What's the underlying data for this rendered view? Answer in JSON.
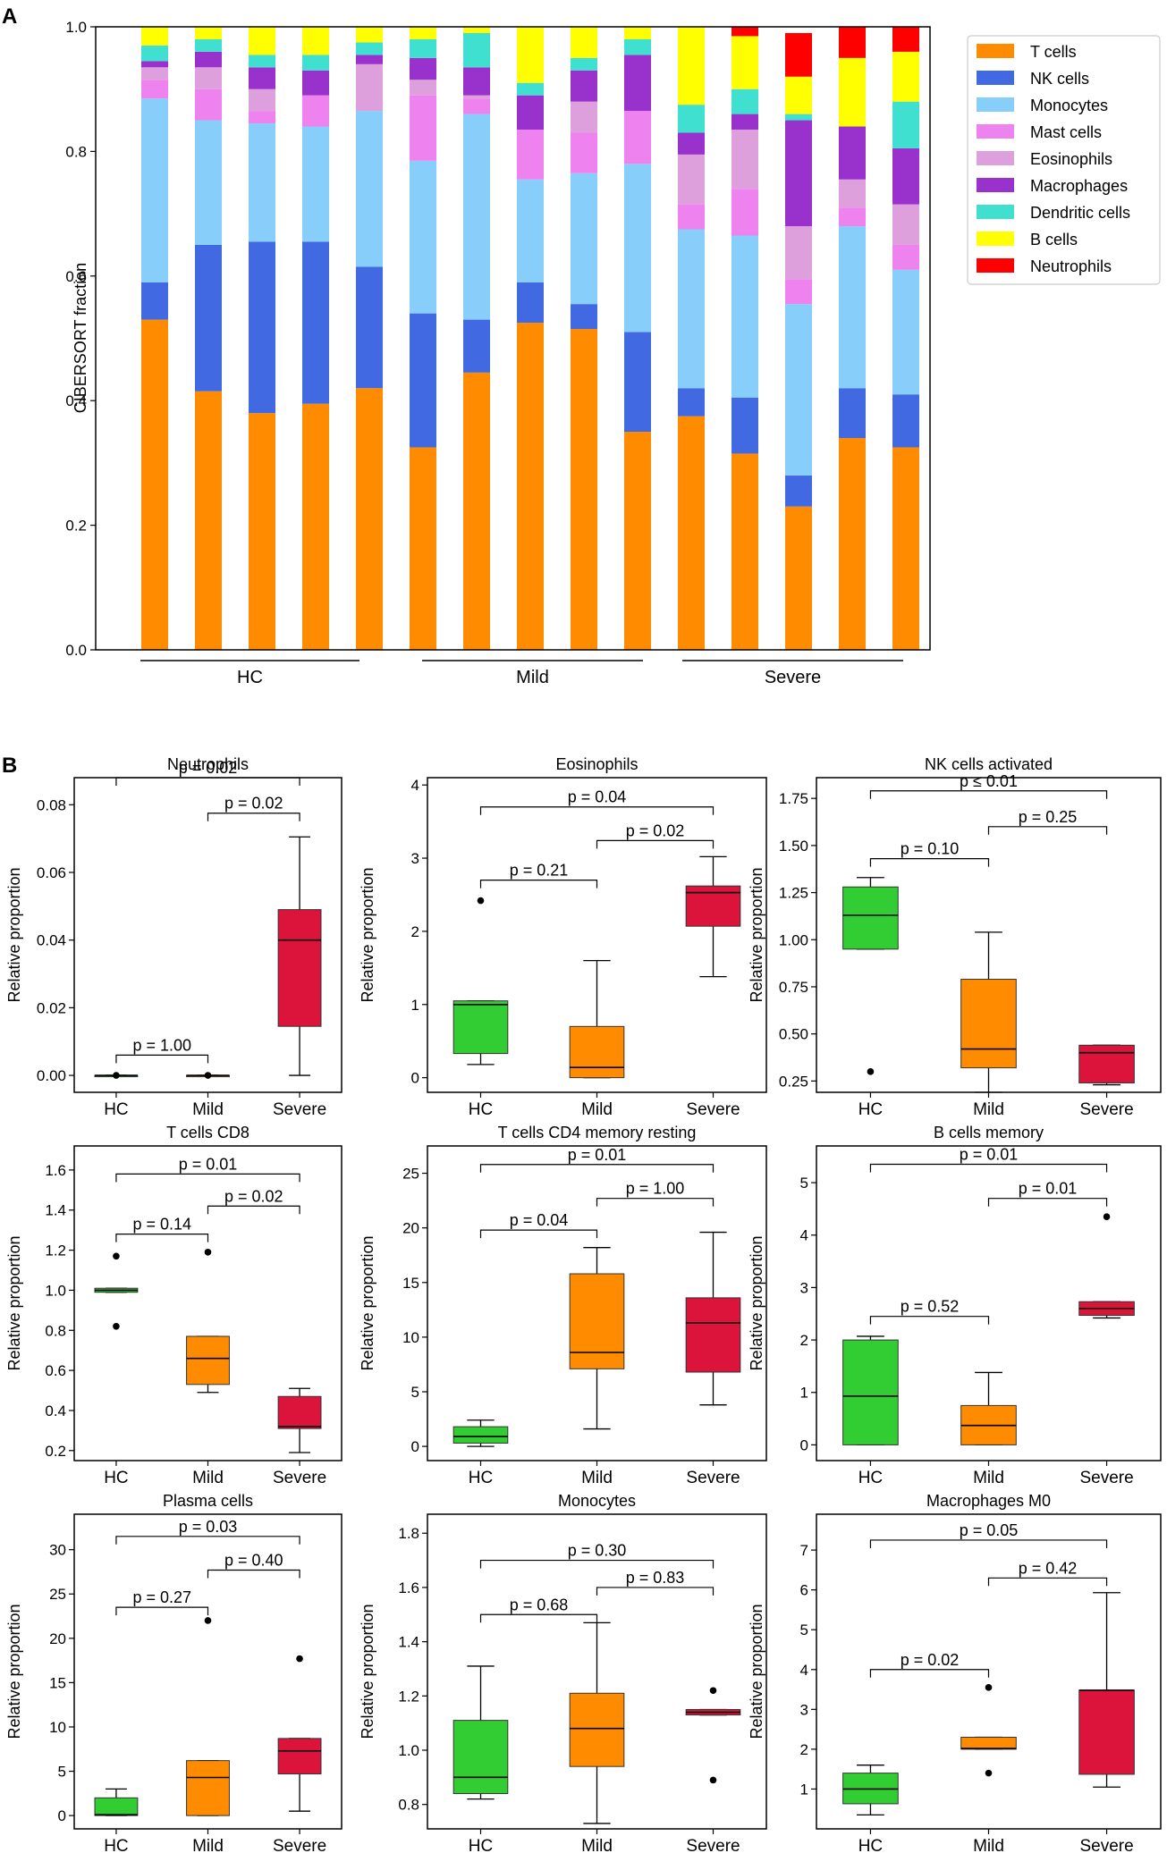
{
  "panel_labels": {
    "a": "A",
    "b": "B"
  },
  "colors": {
    "T cells": "#FF8C00",
    "NK cells": "#4169E1",
    "Monocytes": "#87CEFA",
    "Mast cells": "#EE82EE",
    "Eosinophils": "#DDA0DD",
    "Macrophages": "#9932CC",
    "Dendritic cells": "#40E0D0",
    "B cells": "#FFFF00",
    "Neutrophils": "#FF0000",
    "box_HC": "#32CD32",
    "box_Mild": "#FF8C00",
    "box_Severe": "#DC143C"
  },
  "chart_data": [
    {
      "type": "stacked-bar",
      "title": "",
      "ylabel": "CIBERSORT fraction",
      "ylim": [
        0,
        1.0
      ],
      "yticks": [
        "0.0",
        "0.2",
        "0.4",
        "0.6",
        "0.8",
        "1.0"
      ],
      "legend_position": "top-right",
      "cell_types": [
        "T cells",
        "NK cells",
        "Monocytes",
        "Mast cells",
        "Eosinophils",
        "Macrophages",
        "Dendritic cells",
        "B cells",
        "Neutrophils"
      ],
      "groups": [
        {
          "label": "HC",
          "bars": [
            0,
            1,
            2,
            3,
            4
          ]
        },
        {
          "label": "Mild",
          "bars": [
            5,
            6,
            7,
            8,
            9
          ]
        },
        {
          "label": "Severe",
          "bars": [
            10,
            11,
            12,
            13,
            14
          ]
        }
      ],
      "samples": [
        [
          0.53,
          0.06,
          0.295,
          0.03,
          0.02,
          0.01,
          0.025,
          0.03,
          0.0
        ],
        [
          0.415,
          0.235,
          0.2,
          0.05,
          0.035,
          0.025,
          0.02,
          0.02,
          0.0
        ],
        [
          0.38,
          0.275,
          0.19,
          0.02,
          0.035,
          0.035,
          0.02,
          0.045,
          0.0
        ],
        [
          0.395,
          0.26,
          0.185,
          0.05,
          0.0,
          0.04,
          0.025,
          0.045,
          0.0
        ],
        [
          0.42,
          0.195,
          0.25,
          0.0,
          0.075,
          0.015,
          0.02,
          0.025,
          0.0
        ],
        [
          0.325,
          0.215,
          0.245,
          0.105,
          0.025,
          0.035,
          0.03,
          0.02,
          0.0
        ],
        [
          0.445,
          0.085,
          0.33,
          0.025,
          0.005,
          0.045,
          0.055,
          0.01,
          0.0
        ],
        [
          0.525,
          0.065,
          0.165,
          0.08,
          0.0,
          0.055,
          0.02,
          0.09,
          0.0
        ],
        [
          0.515,
          0.04,
          0.21,
          0.065,
          0.05,
          0.05,
          0.02,
          0.05,
          0.0
        ],
        [
          0.35,
          0.16,
          0.27,
          0.085,
          0.0,
          0.09,
          0.025,
          0.02,
          0.0
        ],
        [
          0.375,
          0.045,
          0.255,
          0.04,
          0.08,
          0.035,
          0.045,
          0.125,
          0.0
        ],
        [
          0.315,
          0.09,
          0.26,
          0.075,
          0.095,
          0.025,
          0.04,
          0.085,
          0.015
        ],
        [
          0.23,
          0.05,
          0.275,
          0.04,
          0.085,
          0.17,
          0.01,
          0.06,
          0.07
        ],
        [
          0.34,
          0.08,
          0.26,
          0.03,
          0.045,
          0.085,
          0.0,
          0.11,
          0.05
        ],
        [
          0.325,
          0.085,
          0.2,
          0.04,
          0.065,
          0.09,
          0.075,
          0.08,
          0.04
        ]
      ]
    },
    {
      "type": "box",
      "title": "Neutrophils",
      "ylabel": "Relative proportion",
      "ylim": [
        -0.005,
        0.088
      ],
      "yticks": [
        0.0,
        0.02,
        0.04,
        0.06,
        0.08
      ],
      "ytick_labels": [
        "0.00",
        "0.02",
        "0.04",
        "0.06",
        "0.08"
      ],
      "groups": [
        "HC",
        "Mild",
        "Severe"
      ],
      "boxes": [
        {
          "min": 0,
          "q1": 0,
          "median": 0,
          "q3": 0,
          "max": 0,
          "outliers": [
            0
          ]
        },
        {
          "min": 0,
          "q1": 0,
          "median": 0,
          "q3": 0,
          "max": 0,
          "outliers": [
            0
          ]
        },
        {
          "min": 0,
          "q1": 0.0145,
          "median": 0.04,
          "q3": 0.049,
          "max": 0.0705,
          "outliers": []
        }
      ],
      "comparisons": [
        {
          "from": 0,
          "to": 2,
          "label": "p = 0.02",
          "y": 0.088
        },
        {
          "from": 1,
          "to": 2,
          "label": "p = 0.02",
          "y": 0.0775
        },
        {
          "from": 0,
          "to": 1,
          "label": "p = 1.00",
          "y": 0.006
        }
      ]
    },
    {
      "type": "box",
      "title": "Eosinophils",
      "ylabel": "Relative proportion",
      "ylim": [
        -0.2,
        4.1
      ],
      "yticks": [
        0,
        1,
        2,
        3,
        4
      ],
      "ytick_labels": [
        "0",
        "1",
        "2",
        "3",
        "4"
      ],
      "groups": [
        "HC",
        "Mild",
        "Severe"
      ],
      "boxes": [
        {
          "min": 0.18,
          "q1": 0.33,
          "median": 1.0,
          "q3": 1.05,
          "max": 1.05,
          "outliers": [
            2.42
          ]
        },
        {
          "min": 0.0,
          "q1": 0.0,
          "median": 0.14,
          "q3": 0.7,
          "max": 1.6,
          "outliers": []
        },
        {
          "min": 1.38,
          "q1": 2.07,
          "median": 2.53,
          "q3": 2.62,
          "max": 3.02,
          "outliers": []
        }
      ],
      "comparisons": [
        {
          "from": 0,
          "to": 2,
          "label": "p = 0.04",
          "y": 3.7
        },
        {
          "from": 1,
          "to": 2,
          "label": "p = 0.02",
          "y": 3.24
        },
        {
          "from": 0,
          "to": 1,
          "label": "p = 0.21",
          "y": 2.7
        }
      ]
    },
    {
      "type": "box",
      "title": "NK cells activated",
      "ylabel": "Relative proportion",
      "ylim": [
        0.19,
        1.86
      ],
      "yticks": [
        0.25,
        0.5,
        0.75,
        1.0,
        1.25,
        1.5,
        1.75
      ],
      "ytick_labels": [
        "0.25",
        "0.50",
        "0.75",
        "1.00",
        "1.25",
        "1.50",
        "1.75"
      ],
      "groups": [
        "HC",
        "Mild",
        "Severe"
      ],
      "boxes": [
        {
          "min": 0.95,
          "q1": 0.95,
          "median": 1.13,
          "q3": 1.28,
          "max": 1.33,
          "outliers": [
            0.3
          ]
        },
        {
          "min": 0.19,
          "q1": 0.32,
          "median": 0.42,
          "q3": 0.79,
          "max": 1.04,
          "outliers": []
        },
        {
          "min": 0.23,
          "q1": 0.24,
          "median": 0.4,
          "q3": 0.44,
          "max": 0.44,
          "outliers": []
        }
      ],
      "comparisons": [
        {
          "from": 0,
          "to": 2,
          "label": "p ≤ 0.01",
          "y": 1.79
        },
        {
          "from": 1,
          "to": 2,
          "label": "p = 0.25",
          "y": 1.6
        },
        {
          "from": 0,
          "to": 1,
          "label": "p = 0.10",
          "y": 1.43
        }
      ]
    },
    {
      "type": "box",
      "title": "T cells CD8",
      "ylabel": "Relative proportion",
      "ylim": [
        0.15,
        1.72
      ],
      "yticks": [
        0.2,
        0.4,
        0.6,
        0.8,
        1.0,
        1.2,
        1.4,
        1.6
      ],
      "ytick_labels": [
        "0.2",
        "0.4",
        "0.6",
        "0.8",
        "1.0",
        "1.2",
        "1.4",
        "1.6"
      ],
      "groups": [
        "HC",
        "Mild",
        "Severe"
      ],
      "boxes": [
        {
          "min": 0.99,
          "q1": 0.99,
          "median": 1.0,
          "q3": 1.01,
          "max": 1.01,
          "outliers": [
            1.17,
            0.82
          ]
        },
        {
          "min": 0.49,
          "q1": 0.53,
          "median": 0.66,
          "q3": 0.77,
          "max": 0.77,
          "outliers": [
            1.19
          ]
        },
        {
          "min": 0.19,
          "q1": 0.31,
          "median": 0.32,
          "q3": 0.47,
          "max": 0.51,
          "outliers": []
        }
      ],
      "comparisons": [
        {
          "from": 0,
          "to": 2,
          "label": "p = 0.01",
          "y": 1.58
        },
        {
          "from": 1,
          "to": 2,
          "label": "p = 0.02",
          "y": 1.42
        },
        {
          "from": 0,
          "to": 1,
          "label": "p = 0.14",
          "y": 1.28
        }
      ]
    },
    {
      "type": "box",
      "title": "T cells CD4 memory resting",
      "ylabel": "Relative proportion",
      "ylim": [
        -1.3,
        27.5
      ],
      "yticks": [
        0,
        5,
        10,
        15,
        20,
        25
      ],
      "ytick_labels": [
        "0",
        "5",
        "10",
        "15",
        "20",
        "25"
      ],
      "groups": [
        "HC",
        "Mild",
        "Severe"
      ],
      "boxes": [
        {
          "min": 0.0,
          "q1": 0.3,
          "median": 0.9,
          "q3": 1.8,
          "max": 2.4,
          "outliers": []
        },
        {
          "min": 1.6,
          "q1": 7.1,
          "median": 8.6,
          "q3": 15.8,
          "max": 18.2,
          "outliers": []
        },
        {
          "min": 3.8,
          "q1": 6.8,
          "median": 11.3,
          "q3": 13.6,
          "max": 19.6,
          "outliers": []
        }
      ],
      "comparisons": [
        {
          "from": 0,
          "to": 2,
          "label": "p = 0.01",
          "y": 25.8
        },
        {
          "from": 1,
          "to": 2,
          "label": "p = 1.00",
          "y": 22.7
        },
        {
          "from": 0,
          "to": 1,
          "label": "p = 0.04",
          "y": 19.8
        }
      ]
    },
    {
      "type": "box",
      "title": "B cells memory",
      "ylabel": "Relative proportion",
      "ylim": [
        -0.3,
        5.7
      ],
      "yticks": [
        0,
        1,
        2,
        3,
        4,
        5
      ],
      "ytick_labels": [
        "0",
        "1",
        "2",
        "3",
        "4",
        "5"
      ],
      "groups": [
        "HC",
        "Mild",
        "Severe"
      ],
      "boxes": [
        {
          "min": 0.0,
          "q1": 0.0,
          "median": 0.93,
          "q3": 2.0,
          "max": 2.07,
          "outliers": []
        },
        {
          "min": 0.0,
          "q1": 0.0,
          "median": 0.37,
          "q3": 0.75,
          "max": 1.38,
          "outliers": []
        },
        {
          "min": 2.42,
          "q1": 2.47,
          "median": 2.6,
          "q3": 2.73,
          "max": 2.73,
          "outliers": [
            4.35
          ]
        }
      ],
      "comparisons": [
        {
          "from": 0,
          "to": 2,
          "label": "p = 0.01",
          "y": 5.35
        },
        {
          "from": 1,
          "to": 2,
          "label": "p = 0.01",
          "y": 4.7
        },
        {
          "from": 0,
          "to": 1,
          "label": "p = 0.52",
          "y": 2.45
        }
      ]
    },
    {
      "type": "box",
      "title": "Plasma cells",
      "ylabel": "Relative proportion",
      "ylim": [
        -1.5,
        34.0
      ],
      "yticks": [
        0,
        5,
        10,
        15,
        20,
        25,
        30
      ],
      "ytick_labels": [
        "0",
        "5",
        "10",
        "15",
        "20",
        "25",
        "30"
      ],
      "groups": [
        "HC",
        "Mild",
        "Severe"
      ],
      "boxes": [
        {
          "min": 0.0,
          "q1": 0.0,
          "median": 0.1,
          "q3": 2.0,
          "max": 3.0,
          "outliers": []
        },
        {
          "min": 0.0,
          "q1": 0.0,
          "median": 4.3,
          "q3": 6.2,
          "max": 6.2,
          "outliers": [
            22.0
          ]
        },
        {
          "min": 0.5,
          "q1": 4.7,
          "median": 7.3,
          "q3": 8.7,
          "max": 8.7,
          "outliers": [
            17.7
          ]
        }
      ],
      "comparisons": [
        {
          "from": 0,
          "to": 2,
          "label": "p = 0.03",
          "y": 31.5
        },
        {
          "from": 1,
          "to": 2,
          "label": "p = 0.40",
          "y": 27.7
        },
        {
          "from": 0,
          "to": 1,
          "label": "p = 0.27",
          "y": 23.5
        }
      ]
    },
    {
      "type": "box",
      "title": "Monocytes",
      "ylabel": "Relative proportion",
      "ylim": [
        0.71,
        1.87
      ],
      "yticks": [
        0.8,
        1.0,
        1.2,
        1.4,
        1.6,
        1.8
      ],
      "ytick_labels": [
        "0.8",
        "1.0",
        "1.2",
        "1.4",
        "1.6",
        "1.8"
      ],
      "groups": [
        "HC",
        "Mild",
        "Severe"
      ],
      "boxes": [
        {
          "min": 0.82,
          "q1": 0.84,
          "median": 0.9,
          "q3": 1.11,
          "max": 1.31,
          "outliers": []
        },
        {
          "min": 0.73,
          "q1": 0.94,
          "median": 1.08,
          "q3": 1.21,
          "max": 1.47,
          "outliers": []
        },
        {
          "min": 1.13,
          "q1": 1.13,
          "median": 1.14,
          "q3": 1.15,
          "max": 1.15,
          "outliers": [
            1.22,
            0.89
          ]
        }
      ],
      "comparisons": [
        {
          "from": 0,
          "to": 2,
          "label": "p = 0.30",
          "y": 1.7
        },
        {
          "from": 1,
          "to": 2,
          "label": "p = 0.83",
          "y": 1.6
        },
        {
          "from": 0,
          "to": 1,
          "label": "p = 0.68",
          "y": 1.5
        }
      ]
    },
    {
      "type": "box",
      "title": "Macrophages M0",
      "ylabel": "Relative proportion",
      "ylim": [
        0.0,
        7.9
      ],
      "yticks": [
        1,
        2,
        3,
        4,
        5,
        6,
        7
      ],
      "ytick_labels": [
        "1",
        "2",
        "3",
        "4",
        "5",
        "6",
        "7"
      ],
      "groups": [
        "HC",
        "Mild",
        "Severe"
      ],
      "boxes": [
        {
          "min": 0.35,
          "q1": 0.63,
          "median": 1.0,
          "q3": 1.4,
          "max": 1.6,
          "outliers": []
        },
        {
          "min": 2.0,
          "q1": 2.0,
          "median": 2.02,
          "q3": 2.3,
          "max": 2.3,
          "outliers": [
            3.55,
            1.4
          ]
        },
        {
          "min": 1.05,
          "q1": 1.37,
          "median": 3.48,
          "q3": 3.48,
          "max": 5.93,
          "outliers": []
        }
      ],
      "comparisons": [
        {
          "from": 0,
          "to": 2,
          "label": "p = 0.05",
          "y": 7.25
        },
        {
          "from": 1,
          "to": 2,
          "label": "p = 0.42",
          "y": 6.3
        },
        {
          "from": 0,
          "to": 1,
          "label": "p = 0.02",
          "y": 4.0
        }
      ]
    }
  ]
}
